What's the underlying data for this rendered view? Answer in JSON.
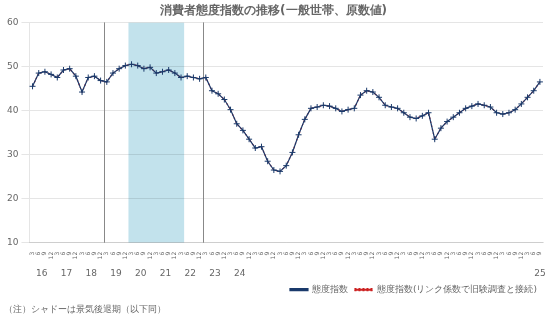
{
  "chart_data": {
    "type": "line",
    "title": "消費者態度指数の推移(一般世帯、原数値)",
    "note": "（注）シャドーは景気後退期（以下同）",
    "categories": [
      "3",
      "6",
      "9",
      "12",
      "3",
      "6",
      "9",
      "12",
      "3",
      "6",
      "9",
      "12",
      "3",
      "6",
      "9",
      "12",
      "3",
      "6",
      "9",
      "12",
      "3",
      "6",
      "9",
      "12",
      "3",
      "6",
      "9",
      "12",
      "3",
      "6",
      "9",
      "12",
      "3",
      "6",
      "9",
      "12",
      "3",
      "6",
      "9",
      "12",
      "3",
      "6",
      "9",
      "12",
      "3",
      "6",
      "9",
      "12",
      "3",
      "6",
      "9",
      "12",
      "3",
      "6",
      "9",
      "12",
      "3",
      "6",
      "9",
      "12",
      "3",
      "6",
      "9",
      "12",
      "3",
      "6",
      "9",
      "12",
      "3",
      "6",
      "9",
      "12",
      "3",
      "6",
      "9",
      "12",
      "3",
      "6",
      "9",
      "12",
      "3",
      "6",
      "9"
    ],
    "series": [
      {
        "name": "態度指数",
        "color": "#1a3a6b",
        "marker": "plus",
        "line_style": "solid",
        "values": [
          45.5,
          48.5,
          48.8,
          48.2,
          47.5,
          49.2,
          49.5,
          47.8,
          44.2,
          47.5,
          47.8,
          46.8,
          46.5,
          48.5,
          49.5,
          50.2,
          50.5,
          50.2,
          49.5,
          49.8,
          48.5,
          48.8,
          49.2,
          48.5,
          47.5,
          47.8,
          47.5,
          47.2,
          47.5,
          44.5,
          43.8,
          42.5,
          40.2,
          37.0,
          35.5,
          33.5,
          31.5,
          31.8,
          28.5,
          26.5,
          26.2,
          27.5,
          30.5,
          34.5,
          38.0,
          40.5,
          40.8,
          41.2,
          41.0,
          40.5,
          39.8,
          40.2,
          40.5,
          43.5,
          44.5,
          44.2,
          43.0,
          41.2,
          40.8,
          40.5,
          39.5,
          38.5,
          38.2,
          38.8,
          39.5,
          33.5,
          36.0,
          37.5,
          38.5,
          39.5,
          40.5,
          41.0,
          41.5,
          41.2,
          40.8,
          39.5,
          39.2,
          39.5,
          40.2,
          41.5,
          43.0,
          44.5,
          46.5
        ]
      },
      {
        "name": "態度指数(リンク係数で旧験調査と接続)",
        "color": "#cc2222",
        "line_style": "dotted",
        "values": [
          45.5,
          48.5,
          48.8,
          48.2,
          47.5,
          49.2,
          49.5,
          47.8,
          44.2,
          47.5,
          47.8,
          46.8,
          46.5,
          48.5,
          49.5,
          50.2,
          50.5,
          50.2,
          49.5,
          49.8,
          48.5,
          48.8,
          49.2,
          48.5,
          47.5,
          47.8,
          47.5,
          47.2,
          47.5,
          44.5,
          43.8,
          42.5,
          40.2,
          37.0,
          35.5,
          33.5,
          31.5,
          31.8,
          28.5,
          26.5,
          26.2,
          27.5,
          30.5,
          34.5,
          38.0,
          40.5,
          40.8,
          41.2,
          41.0,
          40.5,
          39.8,
          40.2,
          40.5,
          43.5,
          44.5,
          44.2,
          43.0,
          41.2,
          40.8,
          40.5,
          39.5,
          38.5,
          38.2,
          38.8,
          39.5,
          33.5,
          36.0,
          37.5,
          38.5,
          39.5,
          40.5,
          41.0,
          41.5,
          41.2,
          40.8,
          39.5,
          39.2,
          39.5,
          40.2,
          41.5,
          43.0,
          44.5,
          46.5
        ]
      }
    ],
    "ylim": [
      10,
      60
    ],
    "yticks": [
      10,
      20,
      30,
      40,
      50,
      60
    ],
    "grid": true,
    "legend": "lower right",
    "bands": [
      {
        "x": [
          16,
          24
        ],
        "color": "#add8e6"
      }
    ],
    "vlines": [
      {
        "x": 12,
        "color": "#888888"
      },
      {
        "x": 28,
        "color": "#888888"
      }
    ],
    "annotations": [
      {
        "text": "16",
        "x": 1.5
      },
      {
        "text": "17",
        "x": 5.5
      },
      {
        "text": "18",
        "x": 9.5
      },
      {
        "text": "19",
        "x": 13.5
      },
      {
        "text": "20",
        "x": 17.5
      },
      {
        "text": "21",
        "x": 21.5
      },
      {
        "text": "22",
        "x": 25.5
      },
      {
        "text": "23",
        "x": 29.5
      },
      {
        "text": "24",
        "x": 33.5
      },
      {
        "text": "25",
        "x": 82
      }
    ]
  }
}
